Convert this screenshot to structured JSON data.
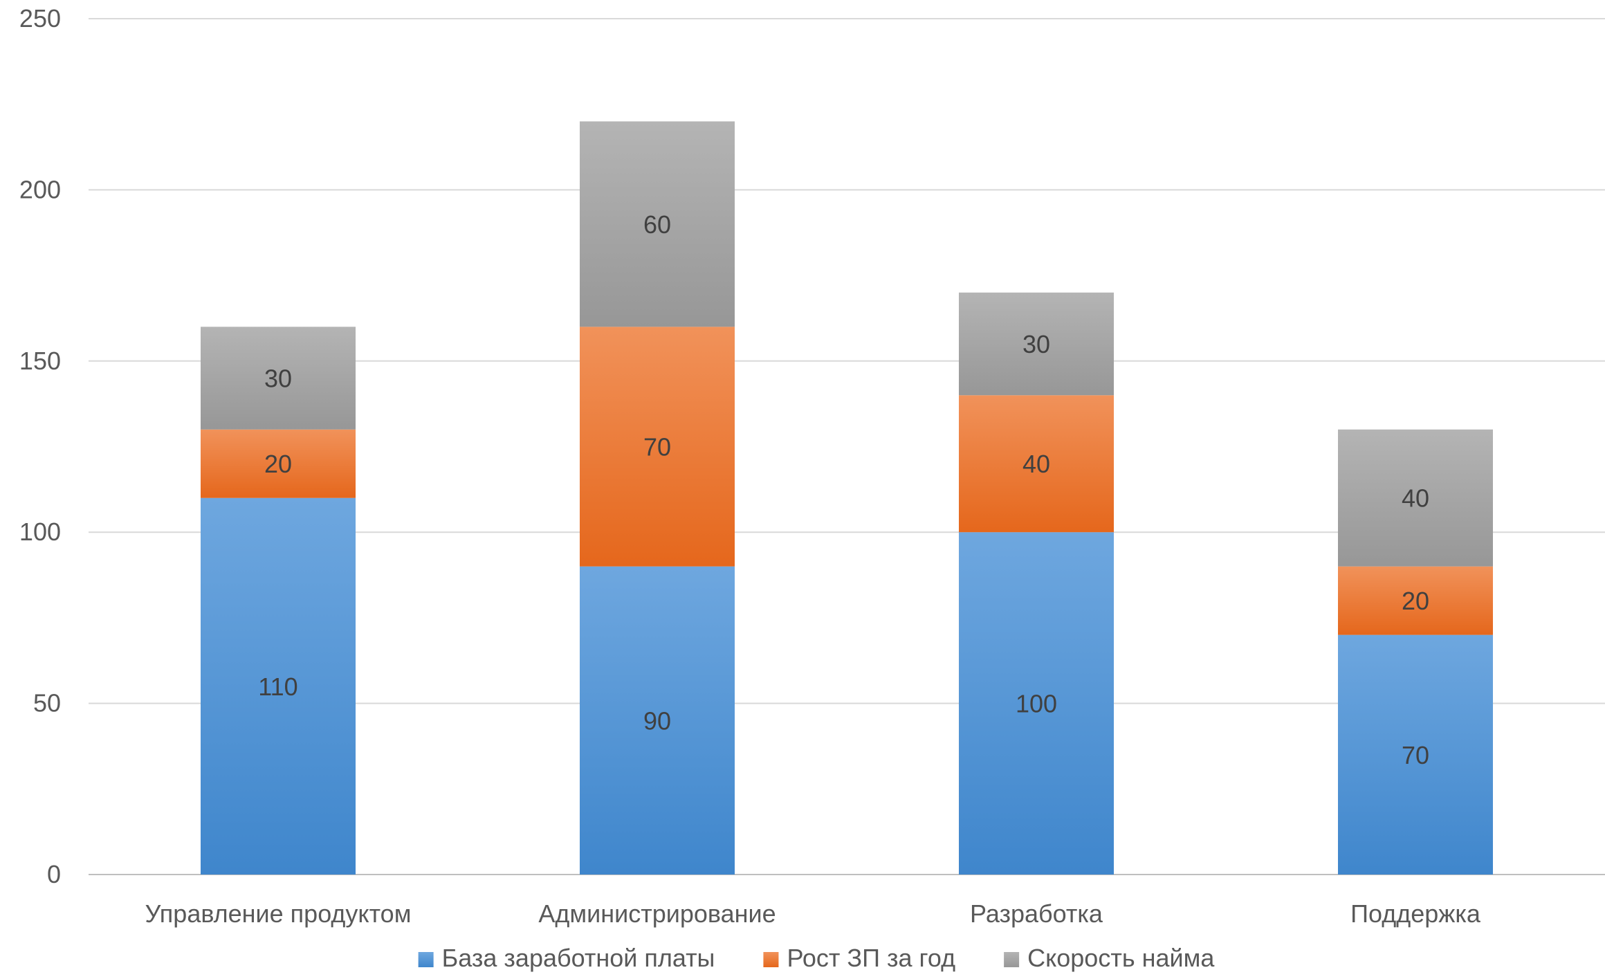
{
  "chart_data": {
    "type": "bar",
    "stacked": true,
    "categories": [
      "Управление продуктом",
      "Администрирование",
      "Разработка",
      "Поддержка"
    ],
    "series": [
      {
        "name": "База заработной платы",
        "values": [
          110,
          90,
          100,
          70
        ],
        "color": "#4a8fd6"
      },
      {
        "name": "Рост ЗП за год",
        "values": [
          20,
          70,
          40,
          20
        ],
        "color": "#ec7628"
      },
      {
        "name": "Скорость найма",
        "values": [
          30,
          60,
          30,
          40
        ],
        "color": "#a3a3a3"
      }
    ],
    "ylim": [
      0,
      250
    ],
    "yticks": [
      0,
      50,
      100,
      150,
      200,
      250
    ],
    "grid": true,
    "legend_position": "bottom"
  }
}
